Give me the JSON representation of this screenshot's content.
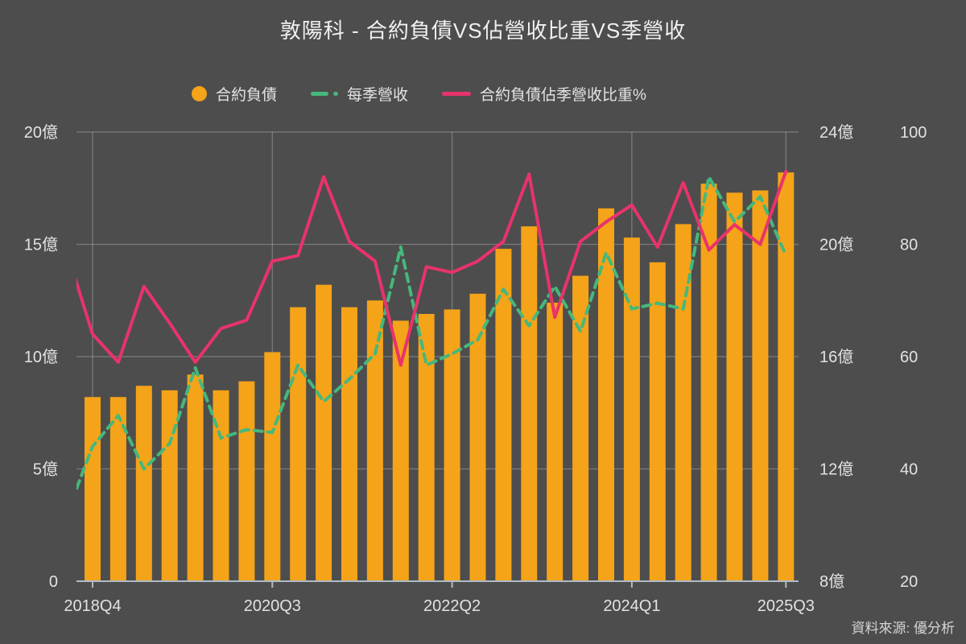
{
  "chart": {
    "title": "敦陽科 - 合約負債VS佔營收比重VS季營收",
    "source": "資料來源: 優分析",
    "background_color": "#4D4D4D",
    "grid_color": "rgba(255,255,255,0.26)",
    "axis_line_color": "#AEBBC7",
    "label_color": "#E2E2E2"
  },
  "legend": [
    {
      "label": "合約負債",
      "marker": "circle",
      "color": "#F5A319"
    },
    {
      "label": "每季營收",
      "marker": "dashed-line",
      "color": "#45B87C"
    },
    {
      "label": "合約負債佔季營收比重%",
      "marker": "line",
      "color": "#E8336B"
    }
  ],
  "chart_data": {
    "type": "bar",
    "title": "敦陽科 - 合約負債VS佔營收比重VS季營收",
    "unit": "億",
    "grid": true,
    "categories": [
      "2018Q4",
      "2019Q1",
      "2019Q2",
      "2019Q3",
      "2019Q4",
      "2020Q1",
      "2020Q2",
      "2020Q3",
      "2020Q4",
      "2021Q1",
      "2021Q2",
      "2021Q3",
      "2021Q4",
      "2022Q1",
      "2022Q2",
      "2022Q3",
      "2022Q4",
      "2023Q1",
      "2023Q2",
      "2023Q3",
      "2023Q4",
      "2024Q1",
      "2024Q2",
      "2024Q3",
      "2024Q4",
      "2025Q1",
      "2025Q2",
      "2025Q3"
    ],
    "x_tick_labels": [
      "2018Q4",
      "2020Q3",
      "2022Q2",
      "2024Q1",
      "2025Q3"
    ],
    "x_tick_indices": [
      0,
      7,
      14,
      21,
      27
    ],
    "series": [
      {
        "name": "合約負債",
        "type": "bar",
        "axis": "left",
        "color": "#F5A319",
        "values": [
          8.2,
          8.2,
          8.7,
          8.5,
          9.2,
          8.5,
          8.9,
          10.2,
          12.2,
          13.2,
          12.2,
          12.5,
          11.6,
          11.9,
          12.1,
          12.8,
          14.8,
          15.8,
          12.4,
          13.6,
          16.6,
          15.3,
          14.2,
          15.9,
          17.7,
          17.3,
          17.4,
          18.2
        ]
      },
      {
        "name": "每季營收",
        "type": "line",
        "style": "dashed",
        "axis": "right_revenue",
        "color": "#45B87C",
        "lead_in_value": 10.4,
        "values": [
          12.8,
          13.9,
          12.0,
          12.9,
          15.6,
          13.1,
          13.4,
          13.3,
          15.7,
          14.4,
          15.2,
          16.1,
          19.9,
          15.7,
          16.1,
          16.6,
          18.4,
          17.1,
          18.5,
          16.9,
          19.7,
          17.7,
          17.9,
          17.7,
          22.4,
          20.8,
          21.7,
          19.6
        ]
      },
      {
        "name": "合約負債佔季營收比重%",
        "type": "line",
        "style": "solid",
        "axis": "right_ratio",
        "color": "#E8336B",
        "lead_in_value": 78.7,
        "values": [
          64,
          59,
          72.5,
          66,
          59,
          65,
          66.5,
          77,
          78,
          92,
          80.5,
          77,
          58.5,
          76,
          75,
          77,
          80.5,
          92.5,
          67,
          80.5,
          84,
          87,
          79.5,
          91,
          79,
          83.5,
          80,
          93
        ]
      }
    ],
    "axes": {
      "left": {
        "tick_labels": [
          "0",
          "5億",
          "10億",
          "15億",
          "20億"
        ],
        "tick_values": [
          0,
          5,
          10,
          15,
          20
        ],
        "min": 0,
        "max": 20
      },
      "right_revenue": {
        "tick_labels": [
          "8億",
          "12億",
          "16億",
          "20億",
          "24億"
        ],
        "tick_values": [
          8,
          12,
          16,
          20,
          24
        ],
        "min": 8,
        "max": 24
      },
      "right_ratio": {
        "tick_labels": [
          "20",
          "40",
          "60",
          "80",
          "100"
        ],
        "tick_values": [
          20,
          40,
          60,
          80,
          100
        ],
        "min": 20,
        "max": 100
      }
    },
    "legend_position": "top"
  }
}
